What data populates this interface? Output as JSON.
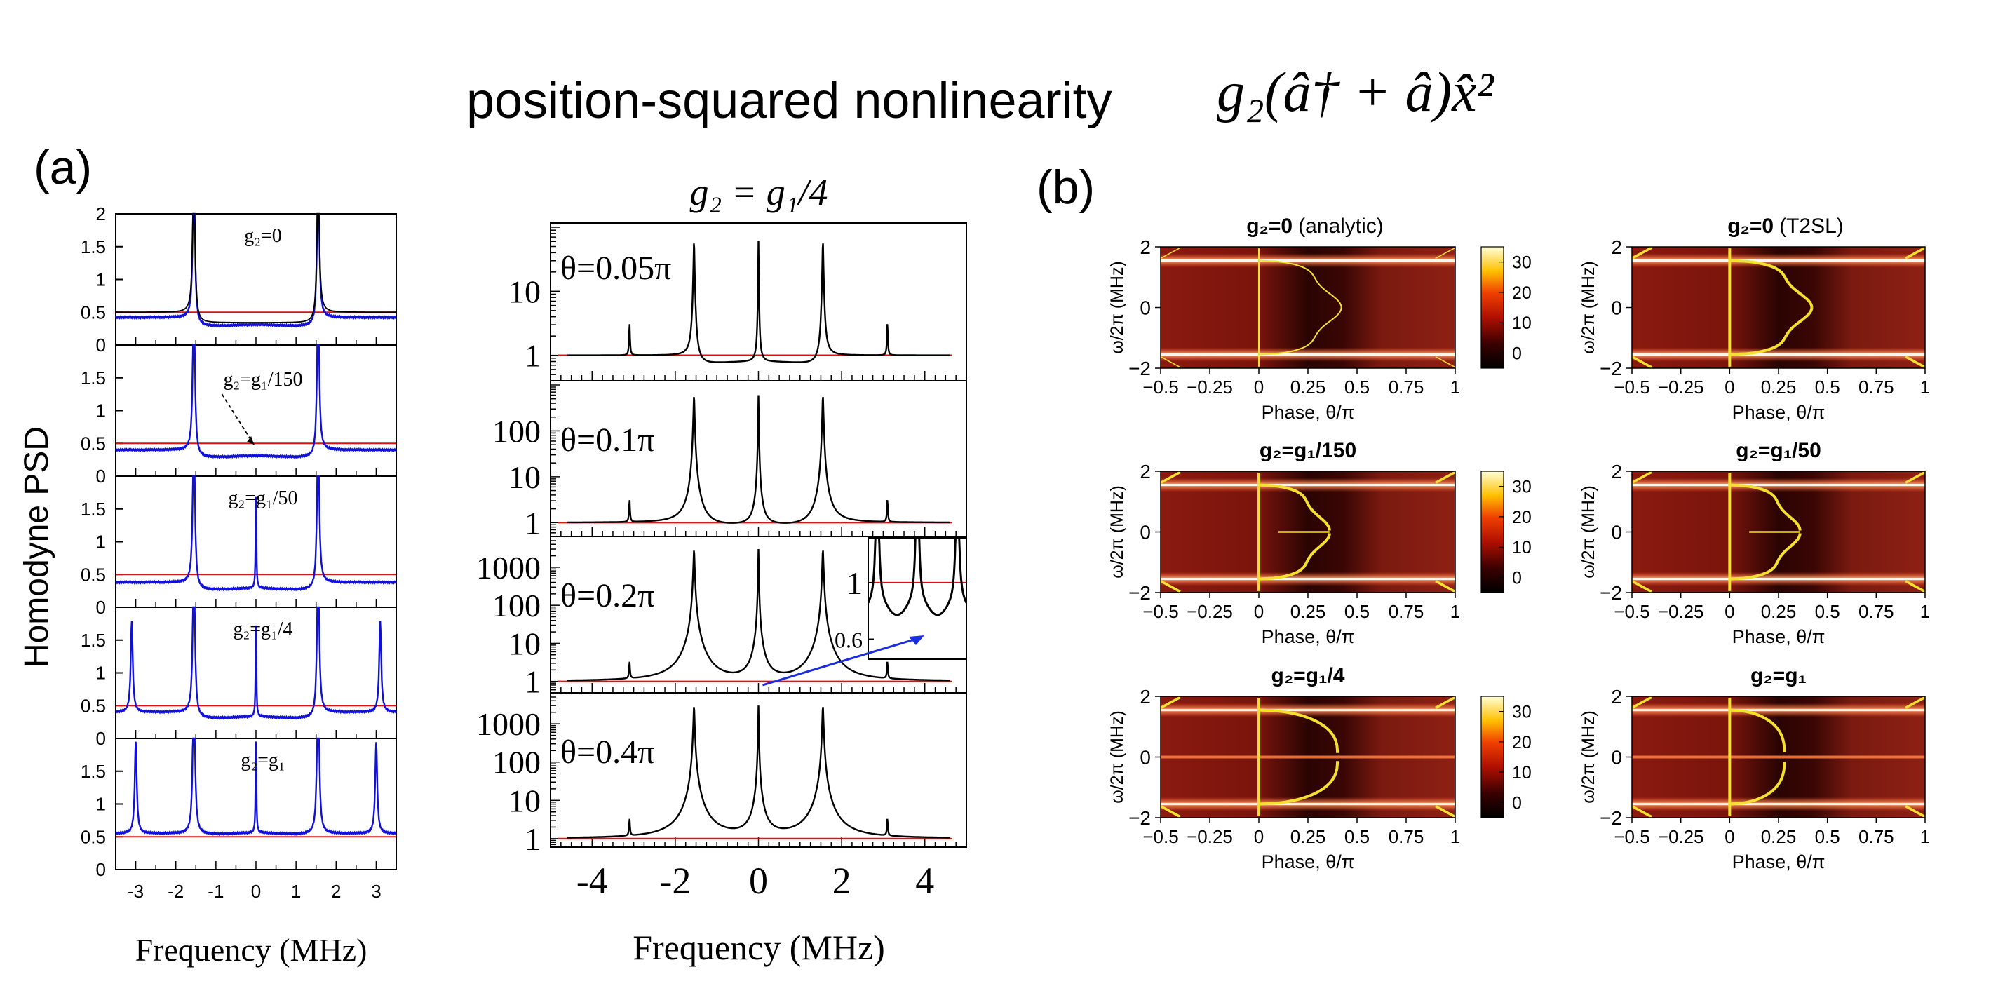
{
  "header": {
    "title": "position-squared nonlinearity",
    "formula": "g₂(â† + â)x̂²"
  },
  "panel_labels": {
    "a": "(a)",
    "b": "(b)"
  },
  "chart_data": [
    {
      "type": "line",
      "id": "a-left",
      "ylabel": "Homodyne PSD",
      "xlabel": "Frequency (MHz)",
      "xlim": [
        -3.5,
        3.5
      ],
      "ylim": [
        0,
        2
      ],
      "xticks": [
        "-3",
        "-2",
        "-1",
        "0",
        "1",
        "2",
        "3"
      ],
      "yticks": [
        "0",
        "0.5",
        "1",
        "1.5",
        "2"
      ],
      "reference_level": 0.5,
      "subplots": [
        {
          "label": "g₂=0",
          "baseline_out": 0.42,
          "baseline_in": 0.3,
          "peaks": [
            -1.55,
            1.55
          ],
          "black_trace": true
        },
        {
          "label": "g₂=g₁/150",
          "baseline_out": 0.4,
          "baseline_in": 0.3,
          "peaks": [
            -1.55,
            1.55
          ],
          "annotation_arrow": true
        },
        {
          "label": "g₂=g₁/50",
          "baseline_out": 0.38,
          "baseline_in": 0.28,
          "peaks": [
            -1.55,
            0,
            1.55
          ]
        },
        {
          "label": "g₂=g₁/4",
          "baseline_out": 0.4,
          "baseline_in": 0.32,
          "peaks": [
            -3.1,
            -1.55,
            0,
            1.55,
            3.1
          ]
        },
        {
          "label": "g₂=g₁",
          "baseline_out": 0.55,
          "baseline_in": 0.55,
          "peaks": [
            -3.0,
            -1.55,
            0,
            1.55,
            3.0
          ]
        }
      ]
    },
    {
      "type": "line",
      "id": "a-right",
      "title": "g₂ = g₁/4",
      "xlabel": "Frequency (MHz)",
      "xlim": [
        -5,
        5
      ],
      "xticks": [
        "-4",
        "-2",
        "0",
        "2",
        "4"
      ],
      "yscale": "log",
      "reference_level": 1,
      "subplots": [
        {
          "label": "θ=0.05π",
          "yticks": [
            "1",
            "10"
          ],
          "ylim": [
            0.4,
            100
          ],
          "dip": 0.7,
          "peaks": [
            -1.55,
            0,
            1.55
          ],
          "small_peaks": [
            -3.1,
            3.1
          ]
        },
        {
          "label": "θ=0.1π",
          "yticks": [
            "1",
            "10",
            "100"
          ],
          "ylim": [
            0.5,
            1000
          ],
          "dip": 0.75,
          "peaks": [
            -1.55,
            0,
            1.55
          ],
          "small_peaks": [
            -3.1,
            3.1
          ]
        },
        {
          "label": "θ=0.2π",
          "yticks": [
            "1",
            "10",
            "100",
            "1000"
          ],
          "ylim": [
            0.5,
            5000
          ],
          "dip": 0.8,
          "peaks": [
            -1.55,
            0,
            1.55
          ],
          "small_peaks": [
            -3.1,
            3.1
          ],
          "inset": {
            "yticks": [
              "0.6",
              "1"
            ],
            "ylim": [
              0.5,
              1.5
            ]
          }
        },
        {
          "label": "θ=0.4π",
          "yticks": [
            "1",
            "10",
            "100",
            "1000"
          ],
          "ylim": [
            0.6,
            5000
          ],
          "dip": 1,
          "peaks": [
            -1.55,
            0,
            1.55
          ],
          "small_peaks": [
            -3.1,
            3.1
          ]
        }
      ]
    },
    {
      "type": "heatmap",
      "id": "b",
      "xlabel": "Phase, θ/π",
      "ylabel": "ω/2π (MHz)",
      "xlim": [
        -0.5,
        1
      ],
      "ylim": [
        -2,
        2
      ],
      "xticks": [
        "−0.5",
        "−0.25",
        "0",
        "0.25",
        "0.5",
        "0.75",
        "1"
      ],
      "yticks": [
        "−2",
        "0",
        "2"
      ],
      "colorbar_ticks": [
        "0",
        "10",
        "20",
        "30"
      ],
      "colorbar_range": [
        -5,
        35
      ],
      "subplots": [
        {
          "title_main": "g₂=0",
          "title_note": "(analytic)",
          "colorbar": true,
          "contour_max": 0.42,
          "split": 0,
          "style": "thin"
        },
        {
          "title_main": "g₂=0",
          "title_note": "(T2SL)",
          "colorbar": false,
          "contour_max": 0.42,
          "split": 0,
          "style": "thick"
        },
        {
          "title_main": "g₂=g₁/150",
          "title_note": "",
          "colorbar": true,
          "contour_max": 0.36,
          "split": 0.3,
          "style": "thick"
        },
        {
          "title_main": "g₂=g₁/50",
          "title_note": "",
          "colorbar": false,
          "contour_max": 0.36,
          "split": 0.3,
          "style": "thick"
        },
        {
          "title_main": "g₂=g₁/4",
          "title_note": "",
          "colorbar": true,
          "contour_max": 0.4,
          "split": 0.9,
          "style": "thick"
        },
        {
          "title_main": "g₂=g₁",
          "title_note": "",
          "colorbar": false,
          "contour_max": 0.28,
          "split": 1.0,
          "style": "thick"
        }
      ]
    }
  ]
}
